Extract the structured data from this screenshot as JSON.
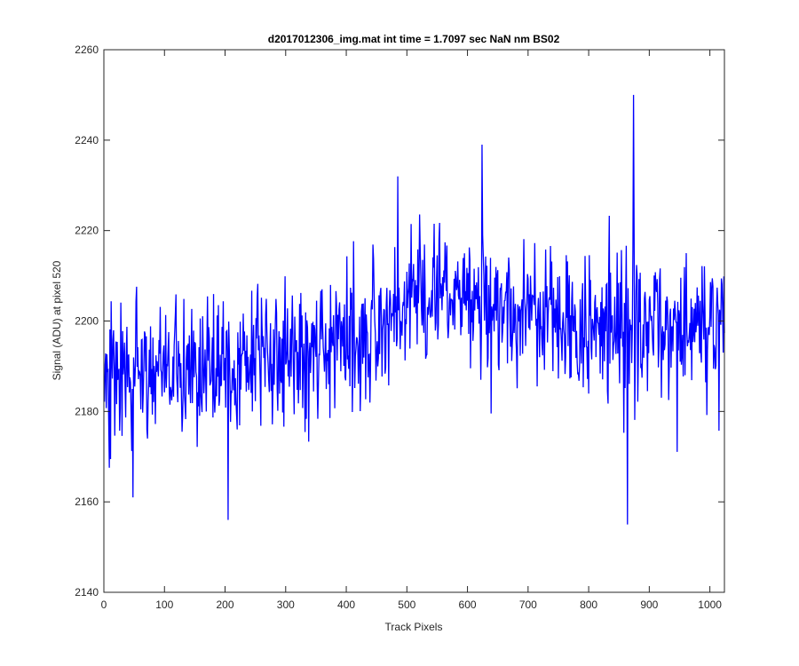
{
  "chart_data": {
    "type": "line",
    "title": "d2017012306_img.mat int time = 1.7097 sec  NaN nm BS02",
    "xlabel": "Track Pixels",
    "ylabel": "Signal (ADU) at pixel 520",
    "xlim": [
      0,
      1024
    ],
    "ylim": [
      2140,
      2260
    ],
    "xticks": [
      0,
      100,
      200,
      300,
      400,
      500,
      600,
      700,
      800,
      900,
      1000
    ],
    "yticks": [
      2140,
      2160,
      2180,
      2200,
      2220,
      2240,
      2260
    ],
    "grid": false,
    "legend": "none",
    "series": [
      {
        "color": "#0000ff",
        "x": [
          1,
          40,
          80,
          120,
          160,
          200,
          240,
          280,
          320,
          360,
          400,
          440,
          480,
          520,
          560,
          600,
          640,
          680,
          720,
          760,
          800,
          840,
          880,
          920,
          960,
          1000,
          1024
        ],
        "y": [
          2192,
          2189,
          2190,
          2191,
          2191,
          2190,
          2192,
          2192,
          2193,
          2195,
          2196,
          2197,
          2201,
          2206,
          2207,
          2206,
          2203,
          2201,
          2200,
          2199,
          2199,
          2200,
          2199,
          2198,
          2198,
          2198,
          2198
        ],
        "notable_points": [
          {
            "x": 48,
            "y": 2161
          },
          {
            "x": 205,
            "y": 2156
          },
          {
            "x": 485,
            "y": 2232
          },
          {
            "x": 624,
            "y": 2239
          },
          {
            "x": 864,
            "y": 2155
          },
          {
            "x": 874,
            "y": 2251
          }
        ]
      }
    ]
  }
}
